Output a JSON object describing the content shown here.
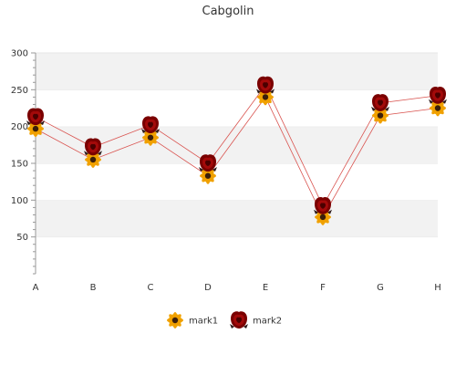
{
  "chart_data": {
    "type": "line",
    "title": "Cabgolin",
    "categories": [
      "A",
      "B",
      "C",
      "D",
      "E",
      "F",
      "G",
      "H"
    ],
    "ylim": [
      0,
      300
    ],
    "yticks": [
      50,
      100,
      150,
      200,
      250,
      300
    ],
    "grid": "horizontal bands",
    "legend_position": "bottom",
    "series": [
      {
        "name": "mark1",
        "values": [
          197,
          155,
          185,
          133,
          240,
          77,
          215,
          225
        ],
        "marker": "sunflower-icon"
      },
      {
        "name": "mark2",
        "values": [
          213,
          172,
          202,
          150,
          256,
          92,
          232,
          242
        ],
        "marker": "rose-icon"
      }
    ],
    "colors": {
      "line": "#d9534f",
      "band": "#f2f2f2",
      "axis": "#999999",
      "sunflower_petal": "#f5b800",
      "sunflower_center": "#3b1f0a",
      "rose": "#8b0000"
    }
  }
}
